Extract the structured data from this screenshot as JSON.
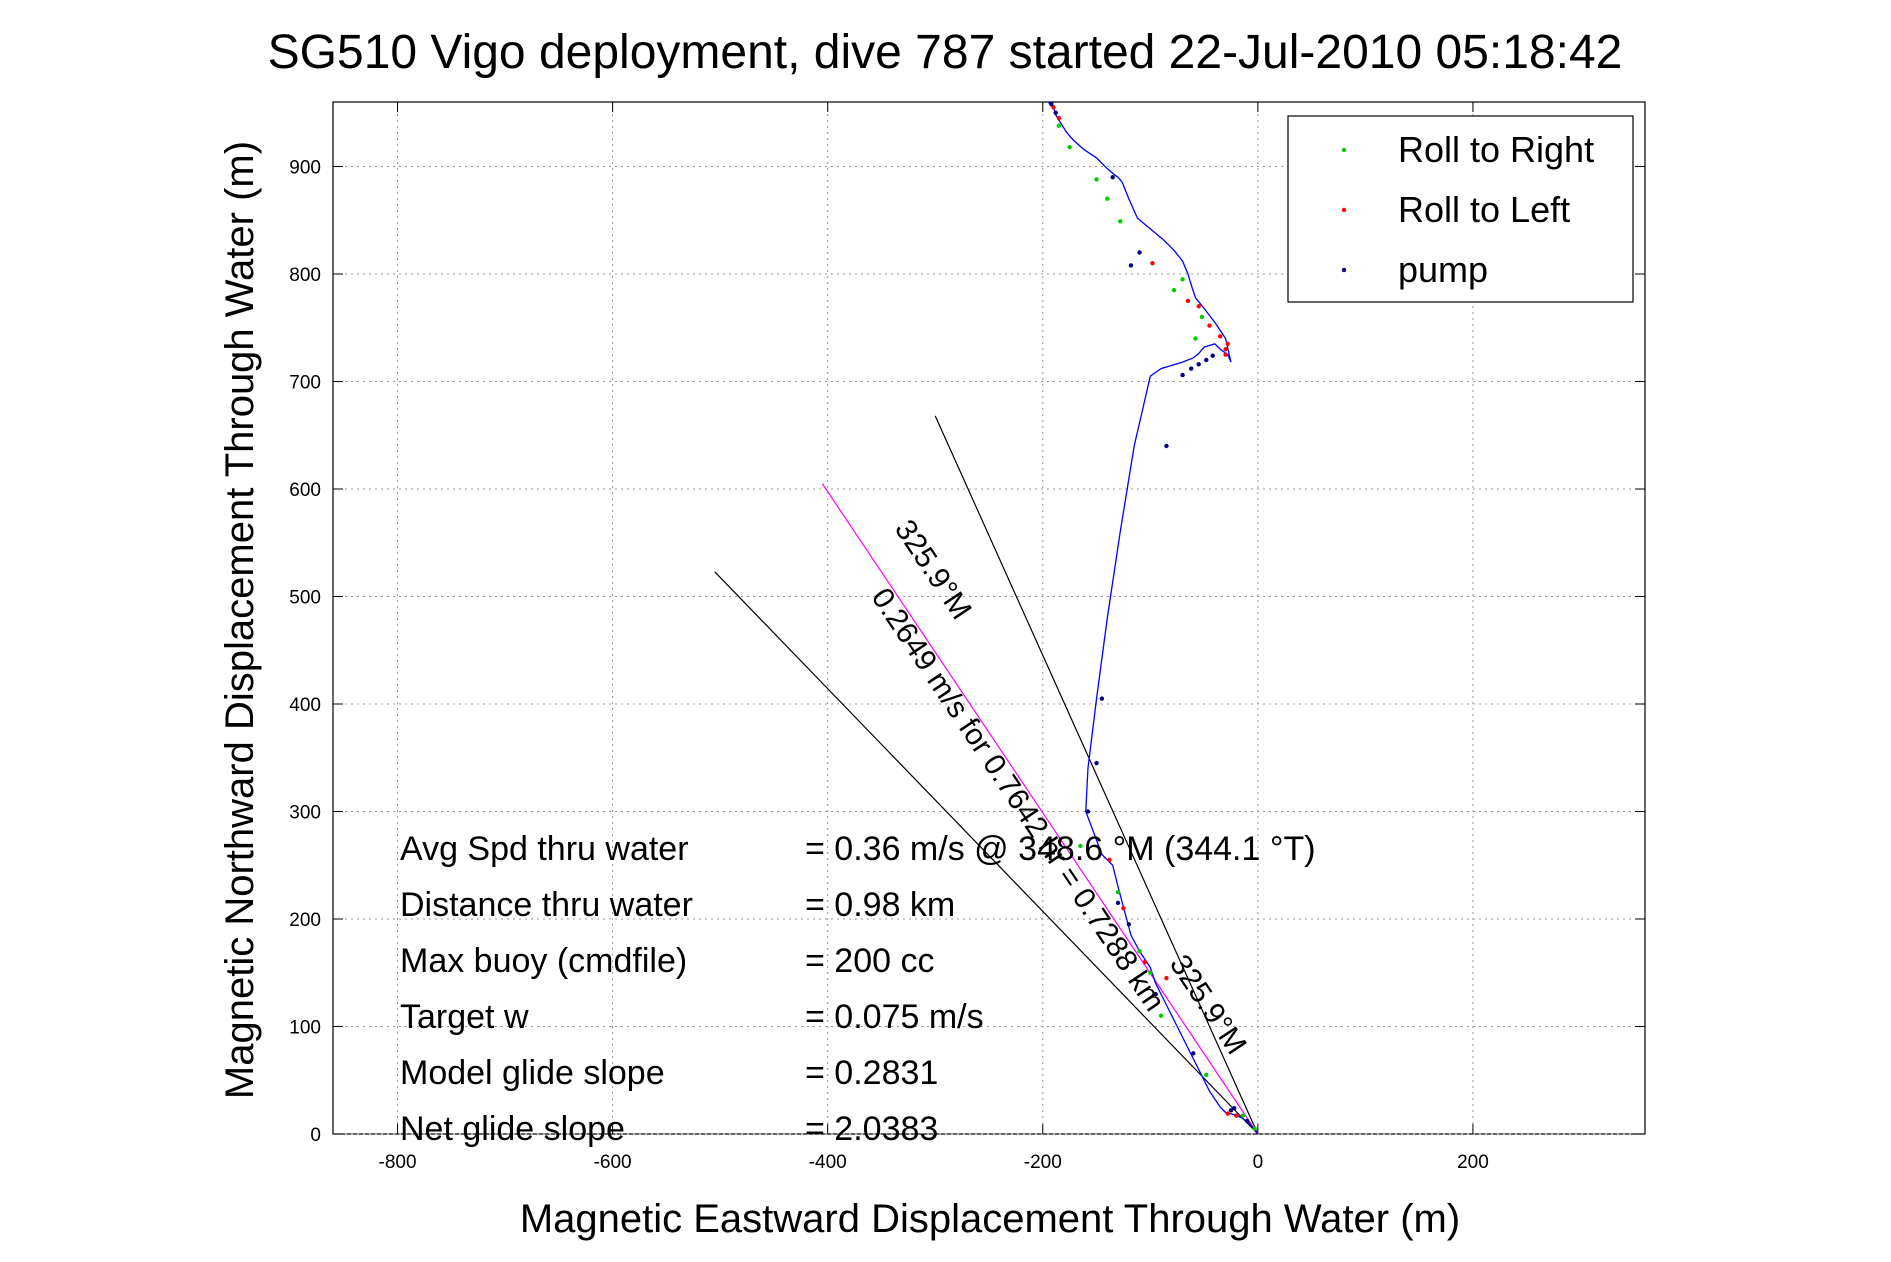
{
  "chart_data": {
    "type": "line",
    "title": "SG510 Vigo deployment, dive 787 started 22-Jul-2010 05:18:42",
    "xlabel": "Magnetic Eastward Displacement Through Water (m)",
    "ylabel": "Magnetic Northward Displacement Through Water (m)",
    "xlim": [
      -860,
      360
    ],
    "ylim": [
      0,
      960
    ],
    "xticks": [
      -800,
      -600,
      -400,
      -200,
      0,
      200
    ],
    "yticks": [
      0,
      100,
      200,
      300,
      400,
      500,
      600,
      700,
      800,
      900
    ],
    "xtick_labels": [
      "-800",
      "-600",
      "-400",
      "-200",
      "0",
      "200"
    ],
    "ytick_labels": [
      "0",
      "100",
      "200",
      "300",
      "400",
      "500",
      "600",
      "700",
      "800",
      "900"
    ],
    "grid": true,
    "legend_position": "top-right",
    "legend": [
      {
        "label": "Roll to Right",
        "color": "#00cc00"
      },
      {
        "label": "Roll to Left",
        "color": "#ff0000"
      },
      {
        "label": "pump",
        "color": "#000080"
      }
    ],
    "track": {
      "color": "#0000ff",
      "x": [
        0,
        -8,
        -15,
        -22,
        -30,
        -35,
        -45,
        -55,
        -65,
        -75,
        -85,
        -95,
        -100,
        -110,
        -118,
        -122,
        -126,
        -130,
        -135,
        -145,
        -160,
        -158,
        -150,
        -140,
        -128,
        -115,
        -100,
        -90,
        -80,
        -70,
        -60,
        -55,
        -50,
        -40,
        -35,
        -28,
        -25,
        -30,
        -40,
        -50,
        -58,
        -62,
        -65,
        -70,
        -78,
        -88,
        -100,
        -112,
        -120,
        -126,
        -130,
        -133,
        -140,
        -150,
        -162,
        -172,
        -178,
        -183,
        -188,
        -190,
        -195
      ],
      "y": [
        0,
        10,
        15,
        18,
        20,
        25,
        40,
        60,
        80,
        100,
        120,
        140,
        155,
        170,
        185,
        200,
        215,
        230,
        250,
        260,
        300,
        340,
        405,
        480,
        560,
        640,
        705,
        712,
        715,
        718,
        722,
        726,
        732,
        735,
        730,
        725,
        718,
        740,
        755,
        768,
        778,
        790,
        800,
        812,
        822,
        832,
        842,
        852,
        870,
        885,
        890,
        892,
        898,
        908,
        916,
        925,
        932,
        940,
        948,
        955,
        960
      ]
    },
    "markers": {
      "roll_right": {
        "color": "#00cc00",
        "x": [
          -3,
          -14,
          -48,
          -90,
          -100,
          -110,
          -130,
          -165,
          -175,
          -150,
          -128,
          -78,
          -58,
          -52,
          -140,
          -70,
          -185
        ],
        "y": [
          5,
          17,
          55,
          110,
          150,
          170,
          225,
          268,
          918,
          888,
          849,
          785,
          740,
          760,
          870,
          795,
          938
        ]
      },
      "roll_left": {
        "color": "#ff0000",
        "x": [
          -20,
          -28,
          -85,
          -125,
          -138,
          -30,
          -28,
          -35,
          -45,
          -65,
          -98,
          -185,
          -190,
          -105,
          -30,
          -55
        ],
        "y": [
          17,
          19,
          145,
          210,
          255,
          725,
          735,
          742,
          752,
          775,
          810,
          945,
          955,
          160,
          730,
          770
        ]
      },
      "pump": {
        "color": "#000080",
        "x": [
          -25,
          -60,
          -120,
          -130,
          -158,
          -150,
          -145,
          -85,
          -70,
          -62,
          -55,
          -48,
          -42,
          -110,
          -118,
          -135,
          -188,
          -192,
          -95,
          -22,
          -10
        ],
        "y": [
          22,
          75,
          195,
          215,
          300,
          345,
          405,
          640,
          706,
          712,
          716,
          720,
          724,
          820,
          808,
          890,
          950,
          958,
          130,
          24,
          12
        ]
      }
    },
    "reference_lines": [
      {
        "name": "line1",
        "color": "#000000",
        "x": [
          0,
          -300
        ],
        "y": [
          0,
          668
        ]
      },
      {
        "name": "line2",
        "color": "#000000",
        "x": [
          0,
          -505
        ],
        "y": [
          0,
          523
        ]
      },
      {
        "name": "line3",
        "color": "#ff00ff",
        "x": [
          0,
          -405
        ],
        "y": [
          0,
          605
        ]
      }
    ],
    "annotations": {
      "line_label_1": "0.2649 m/s for 0.7642 hr = 0.7288 km",
      "line_label_2": "325.9°M",
      "line_label_3": "325.9°M"
    },
    "info_rows": [
      {
        "label": "Avg Spd thru water",
        "value": "=  0.36 m/s @ 348.6 °M (344.1 °T)"
      },
      {
        "label": "Distance thru water",
        "value": "=  0.98 km"
      },
      {
        "label": "Max buoy (cmdfile)",
        "value": "= 200 cc"
      },
      {
        "label": "Target w",
        "value": "= 0.075 m/s"
      },
      {
        "label": "Model glide slope",
        "value": "= 0.2831"
      },
      {
        "label": "Net glide slope",
        "value": "= 2.0383"
      }
    ]
  }
}
